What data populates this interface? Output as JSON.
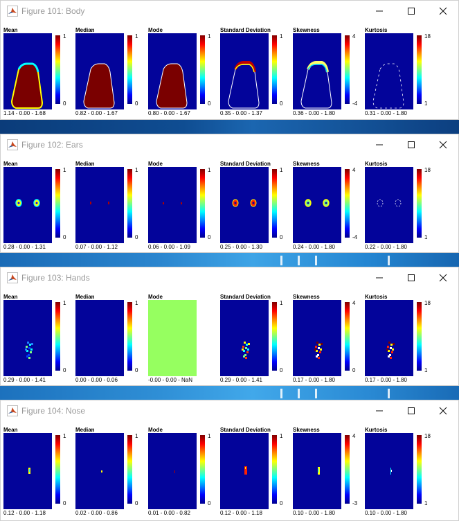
{
  "colors": {
    "background": "#03049a",
    "desktop": "#0a3a78",
    "uniform_green": "#96ff60"
  },
  "titlebar_icons": {
    "app": "matlab-logo-icon",
    "minimize": "minimize-icon",
    "maximize": "maximize-icon",
    "close": "close-icon"
  },
  "windows": [
    {
      "title": "Figure 101: Body",
      "panels": [
        {
          "label": "Mean",
          "cbar_max": "1",
          "cbar_min": "0",
          "stats": "1.14 - 0.00 - 1.68"
        },
        {
          "label": "Median",
          "cbar_max": "1",
          "cbar_min": "0",
          "stats": "0.82 - 0.00 - 1.67"
        },
        {
          "label": "Mode",
          "cbar_max": "1",
          "cbar_min": "0",
          "stats": "0.80 - 0.00 - 1.67"
        },
        {
          "label": "Standard Deviation",
          "cbar_max": "1",
          "cbar_min": "0",
          "stats": "0.35 - 0.00 - 1.37"
        },
        {
          "label": "Skewness",
          "cbar_max": "4",
          "cbar_min": "-4",
          "stats": "0.36 - 0.00 - 1.80"
        },
        {
          "label": "Kurtosis",
          "cbar_max": "18",
          "cbar_min": "1",
          "stats": "0.31 - 0.00 - 1.80"
        }
      ]
    },
    {
      "title": "Figure 102: Ears",
      "panels": [
        {
          "label": "Mean",
          "cbar_max": "1",
          "cbar_min": "0",
          "stats": "0.28 - 0.00 - 1.31"
        },
        {
          "label": "Median",
          "cbar_max": "1",
          "cbar_min": "0",
          "stats": "0.07 - 0.00 - 1.12"
        },
        {
          "label": "Mode",
          "cbar_max": "1",
          "cbar_min": "0",
          "stats": "0.06 - 0.00 - 1.09"
        },
        {
          "label": "Standard Deviation",
          "cbar_max": "1",
          "cbar_min": "0",
          "stats": "0.25 - 0.00 - 1.30"
        },
        {
          "label": "Skewness",
          "cbar_max": "4",
          "cbar_min": "-4",
          "stats": "0.24 - 0.00 - 1.80"
        },
        {
          "label": "Kurtosis",
          "cbar_max": "18",
          "cbar_min": "1",
          "stats": "0.22 - 0.00 - 1.80"
        }
      ]
    },
    {
      "title": "Figure 103: Hands",
      "panels": [
        {
          "label": "Mean",
          "cbar_max": "1",
          "cbar_min": "0",
          "stats": "0.29 - 0.00 - 1.41"
        },
        {
          "label": "Median",
          "cbar_max": "1",
          "cbar_min": "0",
          "stats": "0.00 - 0.00 - 0.06"
        },
        {
          "label": "Mode",
          "cbar_max": "",
          "cbar_min": "",
          "stats": "-0.00 - 0.00 - NaN"
        },
        {
          "label": "Standard Deviation",
          "cbar_max": "1",
          "cbar_min": "0",
          "stats": "0.29 - 0.00 - 1.41"
        },
        {
          "label": "Skewness",
          "cbar_max": "4",
          "cbar_min": "0",
          "stats": "0.17 - 0.00 - 1.80"
        },
        {
          "label": "Kurtosis",
          "cbar_max": "18",
          "cbar_min": "1",
          "stats": "0.17 - 0.00 - 1.80"
        }
      ]
    },
    {
      "title": "Figure 104: Nose",
      "panels": [
        {
          "label": "Mean",
          "cbar_max": "1",
          "cbar_min": "0",
          "stats": "0.12 - 0.00 - 1.18"
        },
        {
          "label": "Median",
          "cbar_max": "1",
          "cbar_min": "0",
          "stats": "0.02 - 0.00 - 0.86"
        },
        {
          "label": "Mode",
          "cbar_max": "1",
          "cbar_min": "0",
          "stats": "0.01 - 0.00 - 0.82"
        },
        {
          "label": "Standard Deviation",
          "cbar_max": "1",
          "cbar_min": "0",
          "stats": "0.12 - 0.00 - 1.18"
        },
        {
          "label": "Skewness",
          "cbar_max": "4",
          "cbar_min": "-3",
          "stats": "0.10 - 0.00 - 1.80"
        },
        {
          "label": "Kurtosis",
          "cbar_max": "18",
          "cbar_min": "1",
          "stats": "0.10 - 0.00 - 1.80"
        }
      ]
    }
  ]
}
